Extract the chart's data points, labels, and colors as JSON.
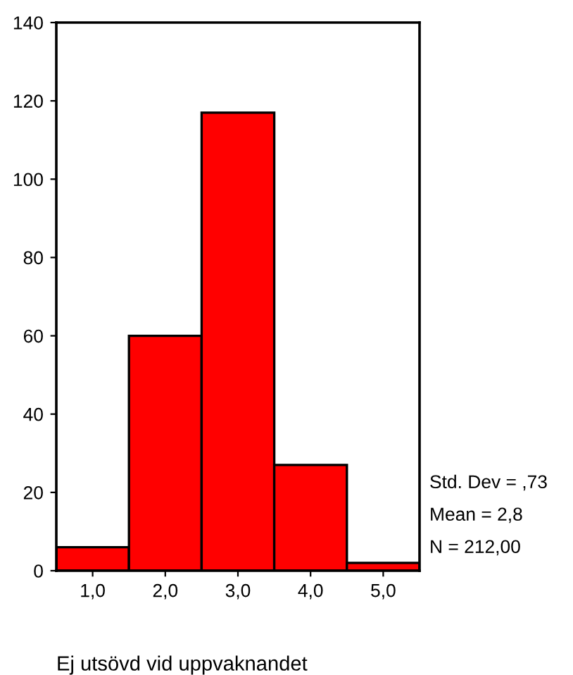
{
  "chart_data": {
    "type": "histogram",
    "bins": [
      0.5,
      1.5,
      2.5,
      3.5,
      4.5,
      5.5
    ],
    "values": [
      6,
      60,
      117,
      27,
      2
    ],
    "color": "#ff0000",
    "xlim": [
      0.5,
      5.5
    ],
    "xticks": [
      {
        "value": 1,
        "label": "1,0"
      },
      {
        "value": 2,
        "label": "2,0"
      },
      {
        "value": 3,
        "label": "3,0"
      },
      {
        "value": 4,
        "label": "4,0"
      },
      {
        "value": 5,
        "label": "5,0"
      }
    ],
    "ylim": [
      0,
      140
    ],
    "yticks": [
      0,
      20,
      40,
      60,
      80,
      100,
      120,
      140
    ],
    "xlabel": "Ej utsövd vid uppvaknandet",
    "annotations": [
      "Std. Dev = ,73",
      "Mean = 2,8",
      "N = 212,00"
    ],
    "grid": false,
    "legend": false
  }
}
